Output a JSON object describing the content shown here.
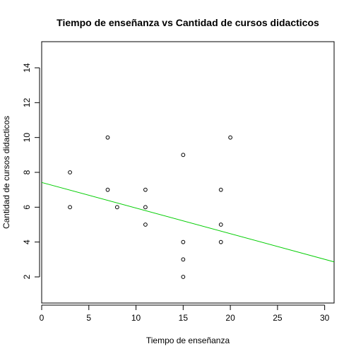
{
  "chart_data": {
    "type": "scatter",
    "title": "Tiempo de enseñanza vs Cantidad de cursos didacticos",
    "xlabel": "Tiempo de enseñanza",
    "ylabel": "Cantidad de cursos didacticos",
    "xlim": [
      0,
      31
    ],
    "ylim": [
      0.5,
      15.5
    ],
    "x_ticks": [
      0,
      5,
      10,
      15,
      20,
      25,
      30
    ],
    "y_ticks": [
      2,
      4,
      6,
      8,
      10,
      12,
      14
    ],
    "grid": false,
    "points": [
      {
        "x": 3,
        "y": 8
      },
      {
        "x": 3,
        "y": 6
      },
      {
        "x": 7,
        "y": 10
      },
      {
        "x": 7,
        "y": 7
      },
      {
        "x": 8,
        "y": 6
      },
      {
        "x": 11,
        "y": 7
      },
      {
        "x": 11,
        "y": 6
      },
      {
        "x": 11,
        "y": 5
      },
      {
        "x": 15,
        "y": 9
      },
      {
        "x": 15,
        "y": 4
      },
      {
        "x": 15,
        "y": 3
      },
      {
        "x": 15,
        "y": 2
      },
      {
        "x": 19,
        "y": 7
      },
      {
        "x": 19,
        "y": 5
      },
      {
        "x": 19,
        "y": 4
      },
      {
        "x": 20,
        "y": 10
      }
    ],
    "regression_line": {
      "intercept": 7.42,
      "slope": -0.147,
      "color": "#00cd00"
    },
    "point_color": "#000000"
  }
}
